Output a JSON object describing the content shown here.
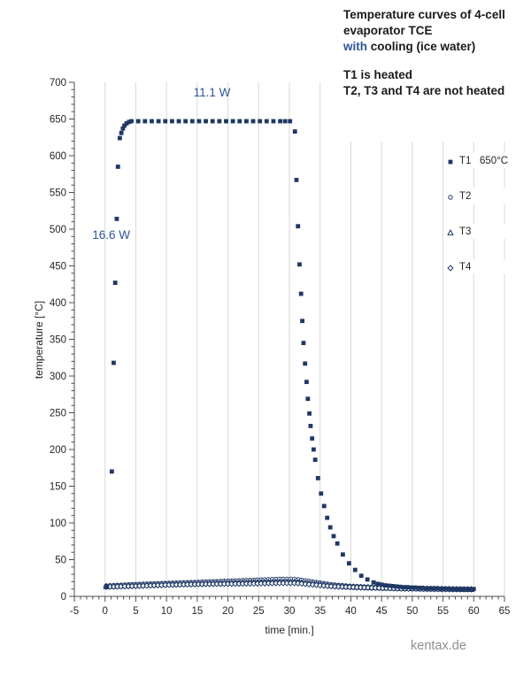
{
  "page": {
    "watermark": "kentax.de"
  },
  "header": {
    "line1": "Temperature curves of 4-cell",
    "line2": "evaporator TCE",
    "line3_blue": "with",
    "line3_rest": " cooling (ice water)",
    "line4": "T1 is heated",
    "line5": "T2, T3 and T4 are not heated"
  },
  "legend": {
    "items": [
      {
        "label": "T1   650°C",
        "series": 0
      },
      {
        "label": "T2",
        "series": 1
      },
      {
        "label": "T3",
        "series": 2
      },
      {
        "label": "T4",
        "series": 3
      }
    ]
  },
  "chart_data": {
    "type": "scatter",
    "xlabel": "time [min.]",
    "ylabel": "temperature [°C]",
    "xlim": [
      -5,
      65
    ],
    "ylim": [
      0,
      700
    ],
    "x_tick_step": 5,
    "x_minor_step": 1,
    "y_tick_step": 50,
    "y_minor_step": 10,
    "grid": "vertical-only",
    "legend_position": "right",
    "marker_color": "#1f3864",
    "gridline_color": "#d9d9d9",
    "axis_color": "#4d4d4d",
    "annotation_color": "#2f5597",
    "annotations": [
      {
        "text": "11.1 W",
        "t": 17.4,
        "temp": 681
      },
      {
        "text": "16.6 W",
        "t": 1.0,
        "temp": 487
      }
    ],
    "series": [
      {
        "name": "T1",
        "marker": "square",
        "filled": true,
        "points": [
          [
            0.3,
            13
          ],
          [
            1.1,
            170
          ],
          [
            1.4,
            318
          ],
          [
            1.65,
            427
          ],
          [
            1.9,
            514
          ],
          [
            2.1,
            585
          ],
          [
            2.4,
            624
          ],
          [
            2.65,
            631
          ],
          [
            2.9,
            637
          ],
          [
            3.15,
            641
          ],
          [
            3.5,
            644
          ],
          [
            3.9,
            646
          ],
          [
            4.3,
            647
          ],
          [
            5.4,
            647
          ],
          [
            6.5,
            647
          ],
          [
            7.6,
            647
          ],
          [
            8.7,
            647
          ],
          [
            9.8,
            647
          ],
          [
            10.9,
            647
          ],
          [
            12,
            647
          ],
          [
            13.1,
            647
          ],
          [
            14.2,
            647
          ],
          [
            15.3,
            647
          ],
          [
            16.4,
            647
          ],
          [
            17.5,
            647
          ],
          [
            18.6,
            647
          ],
          [
            19.7,
            647
          ],
          [
            20.8,
            647
          ],
          [
            21.9,
            647
          ],
          [
            23,
            647
          ],
          [
            24.1,
            647
          ],
          [
            25.2,
            647
          ],
          [
            26.3,
            647
          ],
          [
            27.4,
            647
          ],
          [
            28.5,
            647
          ],
          [
            29.3,
            647
          ],
          [
            30.1,
            647
          ],
          [
            30.9,
            633
          ],
          [
            31.15,
            567
          ],
          [
            31.4,
            504
          ],
          [
            31.65,
            452
          ],
          [
            31.9,
            412
          ],
          [
            32.1,
            375
          ],
          [
            32.3,
            345
          ],
          [
            32.55,
            317
          ],
          [
            32.8,
            292
          ],
          [
            33,
            269
          ],
          [
            33.25,
            249
          ],
          [
            33.45,
            232
          ],
          [
            33.7,
            215
          ],
          [
            33.95,
            200
          ],
          [
            34.2,
            186
          ],
          [
            34.65,
            161
          ],
          [
            35.15,
            140
          ],
          [
            35.65,
            123
          ],
          [
            36.15,
            107
          ],
          [
            36.65,
            94
          ],
          [
            37.2,
            82
          ],
          [
            37.8,
            72
          ],
          [
            38.7,
            57
          ],
          [
            39.7,
            45
          ],
          [
            40.7,
            36
          ],
          [
            41.7,
            28
          ],
          [
            42.7,
            23
          ],
          [
            43.7,
            19
          ],
          [
            44.4,
            17
          ],
          [
            45,
            16
          ],
          [
            45.6,
            15
          ],
          [
            46.2,
            14.5
          ],
          [
            46.8,
            14
          ],
          [
            47.4,
            13.5
          ],
          [
            48,
            13
          ],
          [
            48.6,
            12.5
          ],
          [
            49.2,
            12.5
          ],
          [
            49.8,
            12
          ],
          [
            50.4,
            12
          ],
          [
            51,
            11.5
          ],
          [
            51.6,
            11.5
          ],
          [
            52.2,
            11
          ],
          [
            52.8,
            11
          ],
          [
            53.4,
            11
          ],
          [
            54,
            11
          ],
          [
            54.6,
            10.5
          ],
          [
            55.2,
            10.5
          ],
          [
            55.8,
            10.5
          ],
          [
            56.4,
            10
          ],
          [
            57,
            10
          ],
          [
            57.6,
            10
          ],
          [
            58.2,
            10
          ],
          [
            58.8,
            10
          ],
          [
            59.4,
            10
          ],
          [
            60,
            10
          ]
        ]
      },
      {
        "name": "T2",
        "marker": "circle",
        "filled": false,
        "sample_step": 0.6,
        "knots": [
          [
            0.2,
            14.5
          ],
          [
            5,
            16.5
          ],
          [
            10,
            18
          ],
          [
            15,
            19.5
          ],
          [
            20,
            21
          ],
          [
            25,
            22.5
          ],
          [
            28,
            23.5
          ],
          [
            31,
            23.5
          ],
          [
            33,
            21
          ],
          [
            35,
            18.5
          ],
          [
            37,
            16
          ],
          [
            40,
            14
          ],
          [
            44,
            12.5
          ],
          [
            48,
            11.5
          ],
          [
            52,
            11
          ],
          [
            56,
            10.5
          ],
          [
            60,
            10
          ]
        ]
      },
      {
        "name": "T3",
        "marker": "triangle",
        "filled": false,
        "sample_step": 0.6,
        "knots": [
          [
            0.2,
            13.5
          ],
          [
            5,
            15
          ],
          [
            10,
            16.5
          ],
          [
            15,
            17.5
          ],
          [
            20,
            18.5
          ],
          [
            25,
            19.5
          ],
          [
            28,
            20
          ],
          [
            31,
            20
          ],
          [
            33,
            18
          ],
          [
            35,
            16.5
          ],
          [
            37,
            14.5
          ],
          [
            40,
            13
          ],
          [
            44,
            12
          ],
          [
            48,
            11
          ],
          [
            52,
            10.5
          ],
          [
            56,
            10
          ],
          [
            60,
            9.5
          ]
        ]
      },
      {
        "name": "T4",
        "marker": "diamond",
        "filled": false,
        "sample_step": 0.6,
        "knots": [
          [
            0.2,
            13
          ],
          [
            5,
            14
          ],
          [
            10,
            15.5
          ],
          [
            15,
            16.5
          ],
          [
            20,
            17
          ],
          [
            25,
            17.5
          ],
          [
            28,
            18
          ],
          [
            31,
            18
          ],
          [
            33,
            16.5
          ],
          [
            35,
            15
          ],
          [
            37,
            13.5
          ],
          [
            40,
            12.5
          ],
          [
            44,
            11.5
          ],
          [
            48,
            10.5
          ],
          [
            52,
            10
          ],
          [
            56,
            9.5
          ],
          [
            60,
            9.5
          ]
        ]
      }
    ]
  }
}
